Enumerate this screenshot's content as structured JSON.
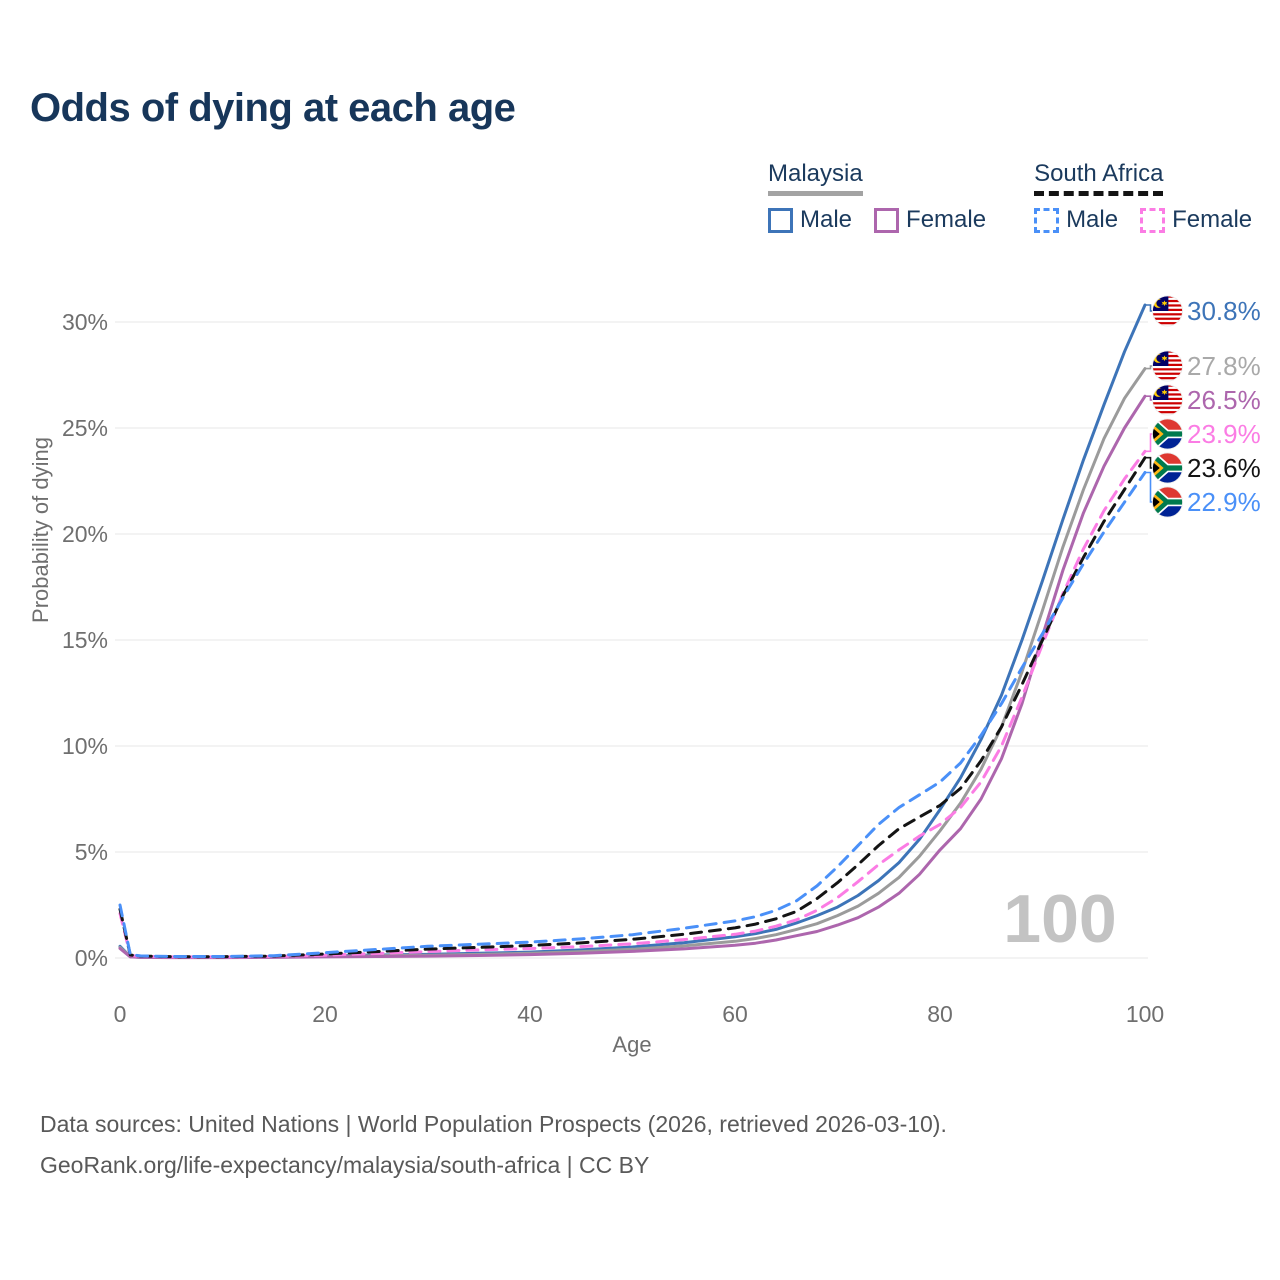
{
  "title": "Odds of dying at each age",
  "legend": {
    "groups": [
      {
        "label": "Malaysia",
        "line_style": "solid",
        "underline_color": "#a3a3a3",
        "items": [
          {
            "label": "Male",
            "color": "#3d74b8",
            "dashed": false
          },
          {
            "label": "Female",
            "color": "#ad66ad",
            "dashed": false
          }
        ]
      },
      {
        "label": "South Africa",
        "line_style": "dashed",
        "underline_color": "#141414",
        "items": [
          {
            "label": "Male",
            "color": "#4a90f8",
            "dashed": true
          },
          {
            "label": "Female",
            "color": "#fb7ce4",
            "dashed": true
          }
        ]
      }
    ]
  },
  "chart_data": {
    "type": "line",
    "title": "Odds of dying at each age",
    "xlabel": "Age",
    "ylabel": "Probability of dying",
    "x_ticks": [
      0,
      20,
      40,
      60,
      80,
      100
    ],
    "y_tick_labels": [
      "0%",
      "5%",
      "10%",
      "15%",
      "20%",
      "25%",
      "30%"
    ],
    "xlim": [
      0,
      100
    ],
    "ylim_pct": [
      0,
      31
    ],
    "grid": "horizontal",
    "legend_position": "top-right",
    "watermark_age": "100",
    "ages": [
      0,
      1,
      2,
      5,
      10,
      15,
      20,
      25,
      30,
      35,
      40,
      45,
      50,
      55,
      60,
      62,
      64,
      66,
      68,
      70,
      72,
      74,
      76,
      78,
      80,
      82,
      84,
      86,
      88,
      90,
      92,
      94,
      96,
      98,
      100
    ],
    "series": [
      {
        "id": "malaysia-male",
        "country": "Malaysia",
        "sex": "Male",
        "color": "#3d74b8",
        "dashed": false,
        "flag": "malaysia",
        "end_label": "30.8%",
        "label_color": "#3d74b8",
        "values_pct": [
          0.55,
          0.06,
          0.04,
          0.03,
          0.04,
          0.07,
          0.11,
          0.14,
          0.17,
          0.22,
          0.28,
          0.38,
          0.52,
          0.72,
          1.0,
          1.15,
          1.35,
          1.65,
          2.0,
          2.4,
          2.95,
          3.65,
          4.5,
          5.6,
          7.0,
          8.5,
          10.3,
          12.4,
          15.0,
          17.8,
          20.7,
          23.5,
          26.1,
          28.6,
          30.8
        ]
      },
      {
        "id": "malaysia-both",
        "country": "Malaysia",
        "sex": "Both sexes",
        "color": "#9b9b9b",
        "dashed": false,
        "flag": "malaysia",
        "end_label": "27.8%",
        "label_color": "#a9a9a9",
        "values_pct": [
          0.5,
          0.055,
          0.035,
          0.025,
          0.03,
          0.05,
          0.08,
          0.11,
          0.13,
          0.17,
          0.22,
          0.3,
          0.41,
          0.57,
          0.79,
          0.92,
          1.1,
          1.35,
          1.62,
          2.0,
          2.45,
          3.05,
          3.8,
          4.8,
          6.0,
          7.3,
          8.9,
          10.9,
          13.5,
          16.4,
          19.4,
          22.1,
          24.5,
          26.4,
          27.8
        ]
      },
      {
        "id": "malaysia-female",
        "country": "Malaysia",
        "sex": "Female",
        "color": "#ad66ad",
        "dashed": false,
        "flag": "malaysia",
        "end_label": "26.5%",
        "label_color": "#ad66ad",
        "values_pct": [
          0.45,
          0.05,
          0.03,
          0.02,
          0.02,
          0.03,
          0.05,
          0.07,
          0.09,
          0.12,
          0.16,
          0.22,
          0.31,
          0.43,
          0.6,
          0.7,
          0.85,
          1.05,
          1.25,
          1.55,
          1.9,
          2.4,
          3.05,
          3.95,
          5.1,
          6.1,
          7.5,
          9.4,
          12.0,
          15.2,
          18.3,
          21.0,
          23.2,
          25.0,
          26.5
        ]
      },
      {
        "id": "south-africa-female",
        "country": "South Africa",
        "sex": "Female",
        "color": "#fb7ce4",
        "dashed": true,
        "flag": "south-africa",
        "end_label": "23.9%",
        "label_color": "#fb7ce4",
        "values_pct": [
          2.1,
          0.12,
          0.08,
          0.05,
          0.05,
          0.07,
          0.13,
          0.21,
          0.3,
          0.38,
          0.45,
          0.54,
          0.67,
          0.87,
          1.12,
          1.27,
          1.5,
          1.8,
          2.25,
          2.85,
          3.6,
          4.4,
          5.1,
          5.75,
          6.3,
          7.1,
          8.3,
          10.0,
          12.3,
          14.8,
          17.2,
          19.3,
          21.1,
          22.6,
          23.9
        ]
      },
      {
        "id": "south-africa-both",
        "country": "South Africa",
        "sex": "Both sexes",
        "color": "#141414",
        "dashed": true,
        "flag": "south-africa",
        "end_label": "23.6%",
        "label_color": "#141414",
        "values_pct": [
          2.3,
          0.14,
          0.09,
          0.06,
          0.06,
          0.09,
          0.19,
          0.3,
          0.42,
          0.5,
          0.59,
          0.71,
          0.88,
          1.12,
          1.42,
          1.6,
          1.85,
          2.2,
          2.8,
          3.55,
          4.4,
          5.3,
          6.1,
          6.65,
          7.2,
          8.0,
          9.3,
          10.9,
          12.9,
          15.0,
          17.1,
          18.9,
          20.6,
          22.1,
          23.6
        ]
      },
      {
        "id": "south-africa-male",
        "country": "South Africa",
        "sex": "Male",
        "color": "#4a90f8",
        "dashed": true,
        "flag": "south-africa",
        "end_label": "22.9%",
        "label_color": "#4a90f8",
        "values_pct": [
          2.5,
          0.16,
          0.1,
          0.07,
          0.07,
          0.11,
          0.25,
          0.4,
          0.55,
          0.65,
          0.75,
          0.9,
          1.1,
          1.4,
          1.75,
          1.95,
          2.25,
          2.7,
          3.4,
          4.3,
          5.3,
          6.3,
          7.1,
          7.7,
          8.3,
          9.2,
          10.5,
          12.0,
          13.7,
          15.3,
          17.0,
          18.6,
          20.1,
          21.5,
          22.9
        ]
      }
    ]
  },
  "footer": {
    "line1": "Data sources: United Nations | World Population Prospects (2026, retrieved 2026-03-10).",
    "line2": "GeoRank.org/life-expectancy/malaysia/south-africa | CC BY"
  }
}
